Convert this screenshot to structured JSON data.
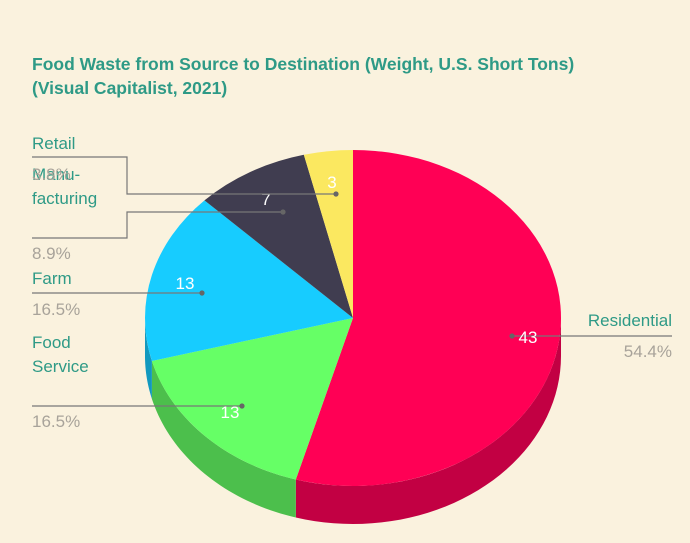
{
  "chart_data": {
    "type": "pie",
    "title_lines": [
      "Food Waste from Source to Destination (Weight, U.S. Short Tons)",
      "(Visual Capitalist, 2021)"
    ],
    "slices": [
      {
        "label_lines": [
          "Residential"
        ],
        "value": 43,
        "value_label": "43",
        "percent_label": "54.4%",
        "color": "#ff0055",
        "side_color": "#c20043"
      },
      {
        "label_lines": [
          "Food",
          "Service"
        ],
        "value": 13,
        "value_label": "13",
        "percent_label": "16.5%",
        "color": "#66ff66",
        "side_color": "#4cbf4c"
      },
      {
        "label_lines": [
          "Farm"
        ],
        "value": 13,
        "value_label": "13",
        "percent_label": "16.5%",
        "color": "#17ccff",
        "side_color": "#1199bf"
      },
      {
        "label_lines": [
          "Manu-",
          "facturing"
        ],
        "value": 7,
        "value_label": "7",
        "percent_label": "8.9%",
        "color": "#403d50",
        "side_color": "#302e3c"
      },
      {
        "label_lines": [
          "Retail"
        ],
        "value": 3,
        "value_label": "3",
        "percent_label": "3.8%",
        "color": "#fbe860",
        "side_color": "#bcae48"
      }
    ],
    "start": "12 o'clock",
    "direction": "clockwise",
    "style": "3d-tilted-pie"
  }
}
